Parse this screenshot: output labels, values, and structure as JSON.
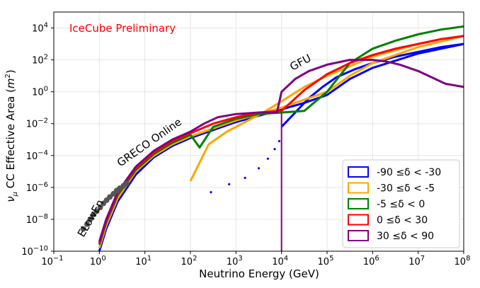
{
  "chart_data": {
    "type": "line",
    "title": "",
    "xlabel": "Neutrino Energy (GeV)",
    "ylabel": "ν_μ CC Effective Area (m²)",
    "xscale": "log",
    "yscale": "log",
    "xlim_exp": [
      -1,
      8
    ],
    "ylim_exp": [
      -10,
      5
    ],
    "xticks_exp": [
      -1,
      0,
      1,
      2,
      3,
      4,
      5,
      6,
      7,
      8
    ],
    "yticks_exp": [
      -10,
      -8,
      -6,
      -4,
      -2,
      0,
      2,
      4
    ],
    "grid": true,
    "legend_position": "bottom-right",
    "annotations": {
      "preliminary": "IceCube Preliminary",
      "gfu": "GFU",
      "greco": "GRECO Online",
      "elowen": "ELowEn"
    },
    "annotation_color": "#ff0000",
    "elowen_series": {
      "name": "ELowEn",
      "color": "#555555",
      "x_exp": [
        -0.35,
        -0.27,
        -0.2,
        -0.13,
        -0.06,
        0.02,
        0.09,
        0.16,
        0.23,
        0.31,
        0.38,
        0.45,
        0.53,
        0.6
      ],
      "y_exp": [
        -8.6,
        -8.3,
        -8.0,
        -7.7,
        -7.5,
        -7.25,
        -7.0,
        -6.8,
        -6.6,
        -6.4,
        -6.2,
        -6.05,
        -5.9,
        -5.75
      ]
    },
    "series": [
      {
        "name": "-90  ≤δ <  -30",
        "color": "#0000ff",
        "x_exp": [
          0.0,
          0.15,
          0.4,
          0.8,
          1.2,
          1.6,
          2.0,
          2.5,
          3.0,
          3.5,
          4.0,
          4.5,
          5.0,
          5.5,
          6.0,
          7.0,
          8.0
        ],
        "y_exp": [
          -10.0,
          -8.6,
          -6.9,
          -5.2,
          -4.1,
          -3.4,
          -2.9,
          -2.4,
          -1.9,
          -1.5,
          -1.1,
          -0.7,
          -0.2,
          0.8,
          1.5,
          2.4,
          3.0
        ],
        "low_x_exp": [
          2.45,
          2.85,
          3.2,
          3.5,
          3.7,
          3.85,
          3.95
        ],
        "low_y_exp": [
          -6.3,
          -5.8,
          -5.4,
          -4.8,
          -4.2,
          -3.6,
          -3.1
        ],
        "upper_x_exp": [
          4.0,
          4.3,
          4.6,
          4.9,
          5.2,
          5.6,
          6.0,
          6.5,
          7.0,
          7.5,
          8.0
        ],
        "upper_y_exp": [
          -2.2,
          -1.3,
          -0.4,
          0.3,
          0.9,
          1.4,
          1.8,
          2.2,
          2.5,
          2.8,
          3.0
        ]
      },
      {
        "name": "-30  ≤δ <  -5",
        "color": "#ffa500",
        "x_exp": [
          0.0,
          0.15,
          0.4,
          0.8,
          1.2,
          1.6,
          2.0,
          2.5,
          3.0,
          3.5,
          4.0,
          4.5,
          5.0,
          5.5,
          6.0,
          7.0,
          8.0
        ],
        "y_exp": [
          -9.8,
          -8.4,
          -6.7,
          -5.0,
          -4.0,
          -3.3,
          -2.8,
          -2.3,
          -1.8,
          -1.4,
          -1.0,
          -0.5,
          0.0,
          1.0,
          1.8,
          2.8,
          3.5
        ],
        "upper_x_exp": [
          2.0,
          2.4,
          2.8,
          3.2,
          3.6,
          4.0,
          4.5,
          5.0,
          5.5,
          6.0,
          6.5,
          7.0,
          7.5,
          8.0
        ],
        "upper_y_exp": [
          -5.6,
          -3.3,
          -2.5,
          -1.9,
          -1.3,
          -0.6,
          0.3,
          1.0,
          1.6,
          2.2,
          2.6,
          3.0,
          3.3,
          3.5
        ]
      },
      {
        "name": "-5  ≤δ <  0",
        "color": "#008000",
        "x_exp": [
          0.0,
          0.15,
          0.4,
          0.8,
          1.2,
          1.6,
          2.0,
          2.2,
          2.5,
          3.0,
          3.5,
          4.0,
          4.5,
          5.0,
          5.5,
          6.0,
          6.5,
          7.0,
          7.5,
          8.0
        ],
        "y_exp": [
          -9.6,
          -8.2,
          -6.5,
          -4.9,
          -3.9,
          -3.2,
          -2.7,
          -3.5,
          -2.2,
          -1.7,
          -1.4,
          -1.3,
          -1.2,
          0.0,
          1.8,
          2.7,
          3.2,
          3.6,
          3.9,
          4.1
        ]
      },
      {
        "name": "0  ≤δ <  30",
        "color": "#ff0000",
        "x_exp": [
          0.0,
          0.15,
          0.4,
          0.8,
          1.2,
          1.6,
          2.0,
          2.5,
          3.0,
          3.5,
          4.0,
          4.5,
          5.0,
          5.5,
          6.0,
          6.5,
          7.0,
          7.5,
          8.0
        ],
        "y_exp": [
          -9.5,
          -8.1,
          -6.4,
          -4.8,
          -3.8,
          -3.1,
          -2.6,
          -2.0,
          -1.6,
          -1.3,
          -1.2,
          0.1,
          1.1,
          1.8,
          2.3,
          2.7,
          3.0,
          3.3,
          3.5
        ]
      },
      {
        "name": "30  ≤δ <  90",
        "color": "#800080",
        "x_exp": [
          0.0,
          0.15,
          0.4,
          0.8,
          1.2,
          1.6,
          2.0,
          2.3,
          2.6,
          3.0,
          3.5,
          3.9,
          4.0,
          4.3,
          4.6,
          5.0,
          5.5,
          6.0,
          6.3,
          6.6,
          7.0,
          7.3,
          7.6,
          8.0
        ],
        "y_exp": [
          -9.4,
          -8.0,
          -6.3,
          -4.7,
          -3.7,
          -3.0,
          -2.5,
          -2.0,
          -1.6,
          -1.4,
          -1.3,
          -1.3,
          0.0,
          0.8,
          1.3,
          1.7,
          2.0,
          2.0,
          1.9,
          1.7,
          1.3,
          0.9,
          0.5,
          0.3
        ]
      }
    ]
  }
}
